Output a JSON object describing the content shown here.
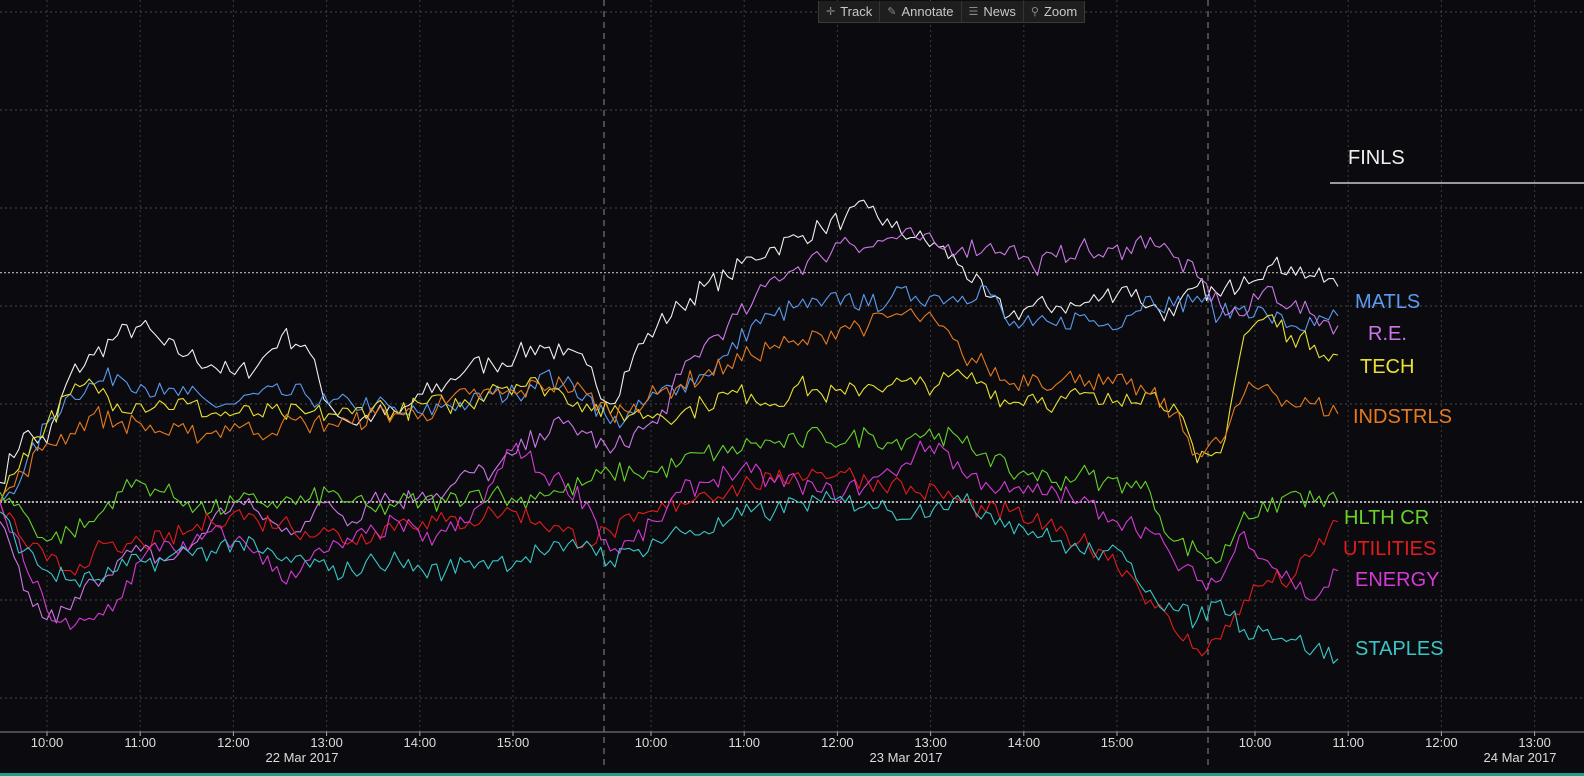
{
  "toolbar": {
    "items": [
      {
        "label": "Track",
        "icon": "crosshair-icon",
        "glyph": "✛"
      },
      {
        "label": "Annotate",
        "icon": "pencil-icon",
        "glyph": "✎"
      },
      {
        "label": "News",
        "icon": "news-icon",
        "glyph": "☰"
      },
      {
        "label": "Zoom",
        "icon": "magnifier-icon",
        "glyph": "⚲"
      }
    ]
  },
  "chart_data": {
    "type": "line",
    "sessions": [
      {
        "date": "22 Mar 2017",
        "times": [
          "10:00",
          "11:00",
          "12:00",
          "13:00",
          "14:00",
          "15:00"
        ]
      },
      {
        "date": "23 Mar 2017",
        "times": [
          "10:00",
          "11:00",
          "12:00",
          "13:00",
          "14:00",
          "15:00"
        ]
      },
      {
        "date": "24 Mar 2017",
        "times": [
          "10:00",
          "11:00",
          "12:00",
          "13:00"
        ]
      }
    ],
    "grid": true,
    "reference_lines": 2,
    "series": [
      {
        "name": "FINLS",
        "color": "#f0f0f0",
        "values": [
          0.2,
          0.7,
          0.6,
          1.3,
          1.5,
          1.7,
          1.8,
          1.6,
          1.5,
          1.4,
          1.3,
          1.4,
          1.7,
          1.6,
          1.0,
          0.8,
          0.9,
          0.9,
          1.1,
          1.2,
          1.4,
          1.4,
          1.5,
          1.6,
          1.5,
          1.4,
          1.0,
          1.5,
          1.8,
          2.0,
          2.2,
          2.3,
          2.5,
          2.6,
          2.7,
          2.8,
          2.9,
          3.0,
          2.8,
          2.7,
          2.6,
          2.4,
          2.1,
          1.9,
          2.0,
          2.0,
          2.0,
          2.1,
          2.2,
          2.0,
          1.9,
          2.2,
          2.1,
          2.3,
          2.4,
          2.4,
          2.3,
          2.2
        ]
      },
      {
        "name": "MATLS",
        "color": "#5b9bf0",
        "values": [
          0.0,
          0.3,
          0.8,
          1.1,
          1.2,
          1.3,
          1.2,
          1.1,
          1.1,
          1.0,
          1.0,
          1.1,
          1.1,
          1.1,
          1.0,
          1.0,
          1.0,
          0.9,
          0.9,
          1.0,
          1.0,
          1.1,
          1.1,
          1.3,
          1.2,
          1.1,
          0.8,
          0.9,
          1.1,
          1.2,
          1.3,
          1.5,
          1.8,
          1.9,
          2.0,
          2.0,
          2.1,
          2.0,
          2.1,
          2.1,
          2.1,
          2.1,
          2.2,
          1.8,
          1.8,
          1.8,
          1.9,
          1.8,
          1.9,
          2.1,
          2.0,
          2.1,
          1.9,
          2.0,
          1.9,
          1.8,
          1.8,
          1.9
        ]
      },
      {
        "name": "R.E.",
        "color": "#cc77e8",
        "values": [
          -0.2,
          -0.9,
          -1.2,
          -1.1,
          -0.8,
          -0.6,
          -0.5,
          -0.6,
          -0.5,
          -0.2,
          0.0,
          -0.1,
          -0.3,
          -0.2,
          0.0,
          -0.2,
          0.1,
          0.0,
          0.1,
          0.1,
          0.3,
          0.3,
          0.5,
          0.7,
          0.8,
          0.7,
          0.5,
          0.7,
          0.8,
          1.3,
          1.6,
          1.8,
          2.0,
          2.3,
          2.4,
          2.5,
          2.7,
          2.6,
          2.7,
          2.7,
          2.6,
          2.6,
          2.6,
          2.6,
          2.4,
          2.5,
          2.6,
          2.5,
          2.6,
          2.7,
          2.5,
          2.3,
          2.0,
          1.9,
          2.2,
          2.0,
          1.9,
          1.8
        ]
      },
      {
        "name": "TECH",
        "color": "#e8e032",
        "values": [
          0.0,
          0.5,
          0.8,
          1.1,
          1.2,
          1.0,
          1.0,
          1.0,
          1.0,
          0.9,
          0.9,
          0.9,
          0.9,
          0.9,
          0.9,
          0.9,
          1.0,
          0.9,
          1.0,
          1.0,
          1.0,
          1.2,
          1.2,
          1.2,
          1.1,
          1.0,
          0.9,
          0.9,
          0.9,
          0.9,
          1.0,
          1.1,
          1.1,
          1.0,
          1.2,
          1.1,
          1.1,
          1.2,
          1.2,
          1.2,
          1.2,
          1.3,
          1.2,
          1.0,
          1.1,
          1.0,
          1.1,
          1.0,
          1.1,
          1.1,
          1.0,
          0.4,
          0.5,
          1.7,
          1.9,
          1.7,
          1.6,
          1.5
        ]
      },
      {
        "name": "INDSTRLS",
        "color": "#e67a1e",
        "values": [
          0.0,
          0.3,
          0.6,
          0.7,
          0.9,
          0.8,
          0.8,
          0.7,
          0.7,
          0.7,
          0.8,
          0.7,
          0.8,
          0.8,
          0.8,
          0.8,
          0.9,
          0.9,
          0.9,
          1.0,
          1.1,
          1.1,
          1.1,
          1.2,
          1.2,
          1.1,
          0.9,
          1.0,
          1.1,
          1.2,
          1.3,
          1.4,
          1.5,
          1.6,
          1.6,
          1.7,
          1.8,
          1.8,
          1.9,
          1.9,
          1.8,
          1.5,
          1.4,
          1.2,
          1.3,
          1.2,
          1.3,
          1.2,
          1.2,
          1.1,
          0.9,
          0.5,
          0.6,
          1.1,
          1.2,
          1.0,
          1.0,
          0.9
        ]
      },
      {
        "name": "HLTH CR",
        "color": "#66d22a",
        "values": [
          0.1,
          -0.1,
          -0.4,
          -0.3,
          -0.2,
          0.1,
          0.2,
          0.1,
          0.0,
          -0.1,
          0.0,
          0.0,
          0.0,
          0.0,
          0.1,
          0.0,
          -0.1,
          0.0,
          0.0,
          0.0,
          0.1,
          0.1,
          0.0,
          0.1,
          0.1,
          0.2,
          0.3,
          0.3,
          0.3,
          0.4,
          0.5,
          0.5,
          0.6,
          0.6,
          0.6,
          0.7,
          0.6,
          0.7,
          0.6,
          0.7,
          0.7,
          0.6,
          0.5,
          0.3,
          0.3,
          0.2,
          0.3,
          0.2,
          0.2,
          0.1,
          -0.4,
          -0.5,
          -0.6,
          -0.1,
          -0.1,
          0.1,
          0.0,
          0.0
        ]
      },
      {
        "name": "UTILITIES",
        "color": "#e01c1c",
        "values": [
          0.0,
          -0.4,
          -0.6,
          -0.7,
          -0.5,
          -0.5,
          -0.4,
          -0.4,
          -0.3,
          -0.2,
          -0.1,
          -0.2,
          -0.2,
          -0.3,
          -0.3,
          -0.4,
          -0.3,
          -0.2,
          -0.2,
          -0.2,
          -0.2,
          -0.1,
          -0.1,
          -0.2,
          -0.3,
          -0.4,
          -0.3,
          -0.2,
          -0.1,
          0.0,
          0.1,
          0.1,
          0.2,
          0.2,
          0.3,
          0.3,
          0.3,
          0.2,
          0.2,
          0.1,
          0.1,
          0.0,
          -0.1,
          -0.1,
          -0.2,
          -0.3,
          -0.4,
          -0.5,
          -0.7,
          -1.0,
          -1.3,
          -1.5,
          -1.4,
          -1.0,
          -0.8,
          -0.8,
          -0.5,
          -0.2
        ]
      },
      {
        "name": "ENERGY",
        "color": "#d43ad4",
        "values": [
          0.0,
          -0.6,
          -1.1,
          -1.3,
          -1.2,
          -1.0,
          -0.6,
          -0.4,
          -0.5,
          -0.3,
          -0.4,
          -0.5,
          -0.8,
          -0.6,
          -0.5,
          -0.4,
          -0.3,
          -0.2,
          -0.4,
          -0.3,
          -0.2,
          0.2,
          0.6,
          0.3,
          0.2,
          0.0,
          -0.5,
          -0.4,
          -0.2,
          0.1,
          0.2,
          0.3,
          0.3,
          0.2,
          0.2,
          0.1,
          0.1,
          0.2,
          0.3,
          0.5,
          0.6,
          0.3,
          0.2,
          0.1,
          0.1,
          0.1,
          0.0,
          -0.1,
          -0.2,
          -0.3,
          -0.6,
          -0.8,
          -0.8,
          -0.3,
          -0.6,
          -0.8,
          -1.0,
          -0.7
        ]
      },
      {
        "name": "STAPLES",
        "color": "#39c6c6",
        "values": [
          -0.1,
          -0.5,
          -0.7,
          -0.8,
          -0.8,
          -0.7,
          -0.6,
          -0.6,
          -0.5,
          -0.5,
          -0.4,
          -0.5,
          -0.6,
          -0.6,
          -0.7,
          -0.7,
          -0.6,
          -0.6,
          -0.7,
          -0.7,
          -0.6,
          -0.6,
          -0.6,
          -0.5,
          -0.5,
          -0.4,
          -0.6,
          -0.5,
          -0.4,
          -0.3,
          -0.3,
          -0.2,
          -0.1,
          -0.1,
          0.0,
          0.0,
          0.0,
          0.0,
          -0.1,
          -0.1,
          0.0,
          0.0,
          -0.1,
          -0.2,
          -0.3,
          -0.4,
          -0.5,
          -0.5,
          -0.6,
          -0.9,
          -1.1,
          -1.2,
          -1.0,
          -1.3,
          -1.3,
          -1.4,
          -1.5,
          -1.6
        ]
      }
    ]
  }
}
